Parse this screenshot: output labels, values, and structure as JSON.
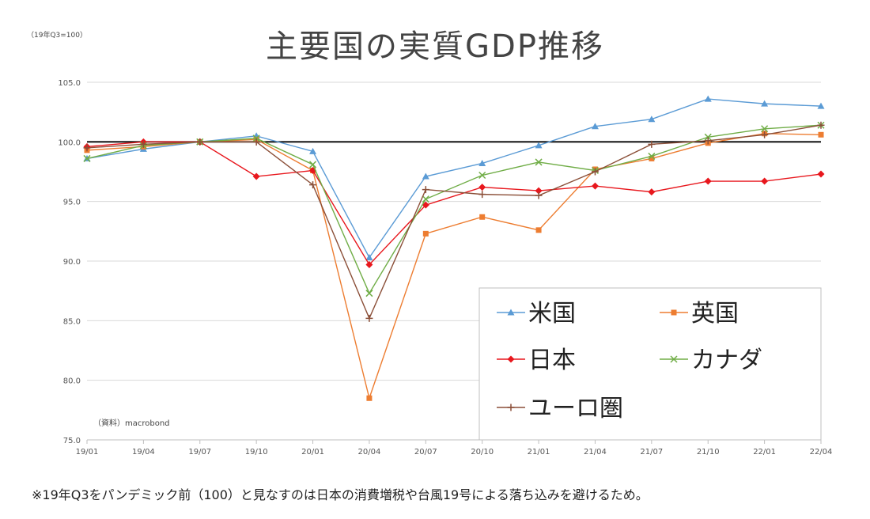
{
  "title": "主要国の実質GDP推移",
  "unit_label": "（19年Q3=100）",
  "source": "（資料）macrobond",
  "note": "※19年Q3をパンデミック前（100）と見なすのは日本の消費増税や台風19号による落ち込みを避けるため。",
  "chart_data": {
    "type": "line",
    "title": "主要国の実質GDP推移",
    "x": [
      "19/01",
      "19/04",
      "19/07",
      "19/10",
      "20/01",
      "20/04",
      "20/07",
      "20/10",
      "21/01",
      "21/04",
      "21/07",
      "21/10",
      "22/01",
      "22/04"
    ],
    "y_ticks": [
      "105.0",
      "100.0",
      "95.0",
      "90.0",
      "85.0",
      "80.0",
      "75.0"
    ],
    "ylim": [
      75,
      105
    ],
    "grid": true,
    "reference_line": 100,
    "legend_position": "bottom-right",
    "series": [
      {
        "name": "米国",
        "color": "#5b9bd5",
        "marker": "triangle",
        "values": [
          98.6,
          99.4,
          100.0,
          100.5,
          99.2,
          90.3,
          97.1,
          98.2,
          99.7,
          101.3,
          101.9,
          103.6,
          103.2,
          103.0
        ]
      },
      {
        "name": "英国",
        "color": "#ed7d31",
        "marker": "square",
        "values": [
          99.3,
          99.6,
          100.0,
          100.2,
          97.6,
          78.5,
          92.3,
          93.7,
          92.6,
          97.7,
          98.6,
          99.9,
          100.7,
          100.6
        ]
      },
      {
        "name": "日本",
        "color": "#e8171d",
        "marker": "diamond",
        "values": [
          99.6,
          100.0,
          100.0,
          97.1,
          97.6,
          89.7,
          94.7,
          96.2,
          95.9,
          96.3,
          95.8,
          96.7,
          96.7,
          97.3
        ]
      },
      {
        "name": "カナダ",
        "color": "#70ad47",
        "marker": "x",
        "values": [
          98.6,
          99.7,
          100.0,
          100.3,
          98.1,
          87.3,
          95.2,
          97.2,
          98.3,
          97.6,
          98.8,
          100.4,
          101.1,
          101.4
        ]
      },
      {
        "name": "ユーロ圏",
        "color": "#8b4f38",
        "marker": "plus",
        "values": [
          99.5,
          99.8,
          100.0,
          100.0,
          96.4,
          85.2,
          96.0,
          95.6,
          95.5,
          97.5,
          99.8,
          100.1,
          100.6,
          101.4
        ]
      }
    ]
  }
}
